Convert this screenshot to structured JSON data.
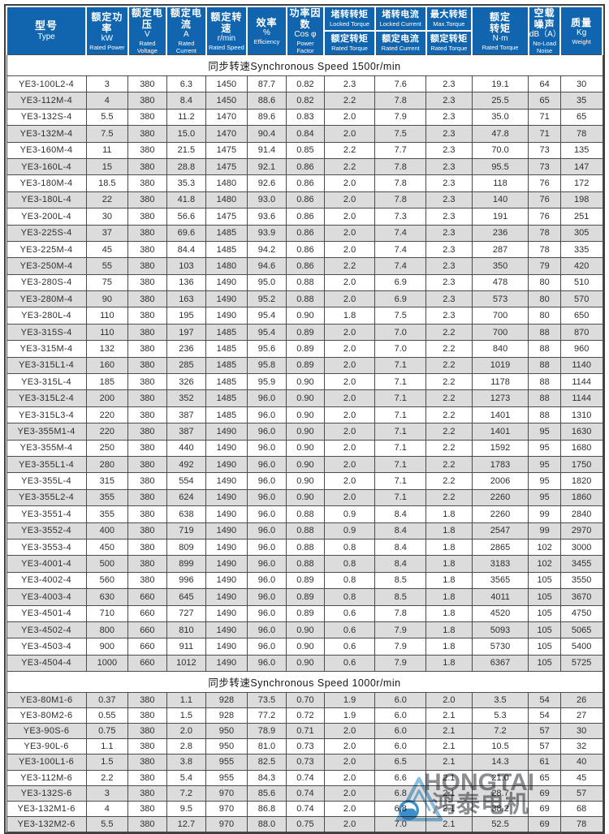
{
  "table": {
    "columns": [
      {
        "id": "type",
        "cjk": [
          "型号"
        ],
        "en": [
          "Type"
        ]
      },
      {
        "id": "rated-power",
        "cjk": [
          "额定功率"
        ],
        "unit": "kW",
        "en": [
          "Rated Power"
        ]
      },
      {
        "id": "rated-voltage",
        "cjk": [
          "额定电压"
        ],
        "unit": "V",
        "en": [
          "Rated Voltage"
        ]
      },
      {
        "id": "rated-current",
        "cjk": [
          "额定电流"
        ],
        "unit": "A",
        "en": [
          "Rated Current"
        ]
      },
      {
        "id": "rated-speed",
        "cjk": [
          "额定转速"
        ],
        "unit": "r/min",
        "en": [
          "Rated Speed"
        ]
      },
      {
        "id": "efficiency",
        "cjk": [
          "效率"
        ],
        "unit": "%",
        "en": [
          "Efficiency"
        ]
      },
      {
        "id": "power-factor",
        "cjk": [
          "功率因数"
        ],
        "unit": "Cos φ",
        "en": [
          "Power Factor"
        ]
      },
      {
        "id": "locked-torque-ratio",
        "top": {
          "cjk": "堵转转矩",
          "en": "Locked Torque"
        },
        "bottom": {
          "cjk": "额定转矩",
          "en": "Rated Torque"
        }
      },
      {
        "id": "locked-current-ratio",
        "top": {
          "cjk": "堵转电流",
          "en": "Locked Current"
        },
        "bottom": {
          "cjk": "额定电流",
          "en": "Rated Current"
        }
      },
      {
        "id": "max-torque-ratio",
        "top": {
          "cjk": "最大转矩",
          "en": "Max.Torque"
        },
        "bottom": {
          "cjk": "额定转矩",
          "en": "Rated Torque"
        }
      },
      {
        "id": "rated-torque",
        "cjk": [
          "额定",
          "转矩"
        ],
        "unit": "N·m",
        "en": [
          "Rated Torque"
        ]
      },
      {
        "id": "no-load-noise",
        "cjk": [
          "空载",
          "噪声"
        ],
        "unit": "dB（A）",
        "en": [
          "No-Load",
          "Noise"
        ]
      },
      {
        "id": "weight",
        "cjk": [
          "质量"
        ],
        "unit": "Kg",
        "en": [
          "Weight"
        ]
      }
    ],
    "sections": [
      {
        "id": "sync-speed-1500",
        "title": "同步转速Synchronous Speed  1500r/min",
        "rows": [
          [
            "YE3-100L2-4",
            "3",
            "380",
            "6.3",
            "1450",
            "87.7",
            "0.82",
            "2.3",
            "7.6",
            "2.3",
            "19.1",
            "64",
            "30"
          ],
          [
            "YE3-112M-4",
            "4",
            "380",
            "8.4",
            "1450",
            "88.6",
            "0.82",
            "2.2",
            "7.8",
            "2.3",
            "25.5",
            "65",
            "35"
          ],
          [
            "YE3-132S-4",
            "5.5",
            "380",
            "11.2",
            "1470",
            "89.6",
            "0.83",
            "2.0",
            "7.9",
            "2.3",
            "35.0",
            "71",
            "65"
          ],
          [
            "YE3-132M-4",
            "7.5",
            "380",
            "15.0",
            "1470",
            "90.4",
            "0.84",
            "2.0",
            "7.5",
            "2.3",
            "47.8",
            "71",
            "78"
          ],
          [
            "YE3-160M-4",
            "11",
            "380",
            "21.5",
            "1475",
            "91.4",
            "0.85",
            "2.2",
            "7.7",
            "2.3",
            "70.0",
            "73",
            "135"
          ],
          [
            "YE3-160L-4",
            "15",
            "380",
            "28.8",
            "1475",
            "92.1",
            "0.86",
            "2.2",
            "7.8",
            "2.3",
            "95.5",
            "73",
            "147"
          ],
          [
            "YE3-180M-4",
            "18.5",
            "380",
            "35.3",
            "1480",
            "92.6",
            "0.86",
            "2.0",
            "7.8",
            "2.3",
            "118",
            "76",
            "172"
          ],
          [
            "YE3-180L-4",
            "22",
            "380",
            "41.8",
            "1480",
            "93.0",
            "0.86",
            "2.0",
            "7.8",
            "2.3",
            "140",
            "76",
            "198"
          ],
          [
            "YE3-200L-4",
            "30",
            "380",
            "56.6",
            "1475",
            "93.6",
            "0.86",
            "2.0",
            "7.3",
            "2.3",
            "191",
            "76",
            "251"
          ],
          [
            "YE3-225S-4",
            "37",
            "380",
            "69.6",
            "1485",
            "93.9",
            "0.86",
            "2.0",
            "7.4",
            "2.3",
            "236",
            "78",
            "305"
          ],
          [
            "YE3-225M-4",
            "45",
            "380",
            "84.4",
            "1485",
            "94.2",
            "0.86",
            "2.0",
            "7.4",
            "2.3",
            "287",
            "78",
            "335"
          ],
          [
            "YE3-250M-4",
            "55",
            "380",
            "103",
            "1480",
            "94.6",
            "0.86",
            "2.2",
            "7.4",
            "2.3",
            "350",
            "79",
            "420"
          ],
          [
            "YE3-280S-4",
            "75",
            "380",
            "136",
            "1490",
            "95.0",
            "0.88",
            "2.0",
            "6.9",
            "2.3",
            "478",
            "80",
            "510"
          ],
          [
            "YE3-280M-4",
            "90",
            "380",
            "163",
            "1490",
            "95.2",
            "0.88",
            "2.0",
            "6.9",
            "2.3",
            "573",
            "80",
            "570"
          ],
          [
            "YE3-280L-4",
            "110",
            "380",
            "195",
            "1490",
            "95.4",
            "0.90",
            "1.8",
            "7.5",
            "2.3",
            "700",
            "80",
            "650"
          ],
          [
            "YE3-315S-4",
            "110",
            "380",
            "197",
            "1485",
            "95.4",
            "0.89",
            "2.0",
            "7.0",
            "2.2",
            "700",
            "88",
            "870"
          ],
          [
            "YE3-315M-4",
            "132",
            "380",
            "236",
            "1485",
            "95.6",
            "0.89",
            "2.0",
            "7.0",
            "2.2",
            "840",
            "88",
            "960"
          ],
          [
            "YE3-315L1-4",
            "160",
            "380",
            "285",
            "1485",
            "95.8",
            "0.89",
            "2.0",
            "7.1",
            "2.2",
            "1019",
            "88",
            "1140"
          ],
          [
            "YE3-315L-4",
            "185",
            "380",
            "326",
            "1485",
            "95.9",
            "0.90",
            "2.0",
            "7.1",
            "2.2",
            "1178",
            "88",
            "1144"
          ],
          [
            "YE3-315L2-4",
            "200",
            "380",
            "352",
            "1485",
            "96.0",
            "0.90",
            "2.0",
            "7.1",
            "2.2",
            "1273",
            "88",
            "1144"
          ],
          [
            "YE3-315L3-4",
            "220",
            "380",
            "387",
            "1485",
            "96.0",
            "0.90",
            "2.0",
            "7.1",
            "2.2",
            "1401",
            "88",
            "1310"
          ],
          [
            "YE3-355M1-4",
            "220",
            "380",
            "387",
            "1490",
            "96.0",
            "0.90",
            "2.0",
            "7.1",
            "2.2",
            "1401",
            "95",
            "1630"
          ],
          [
            "YE3-355M-4",
            "250",
            "380",
            "440",
            "1490",
            "96.0",
            "0.90",
            "2.0",
            "7.1",
            "2.2",
            "1592",
            "95",
            "1680"
          ],
          [
            "YE3-355L1-4",
            "280",
            "380",
            "492",
            "1490",
            "96.0",
            "0.90",
            "2.0",
            "7.1",
            "2.2",
            "1783",
            "95",
            "1750"
          ],
          [
            "YE3-355L-4",
            "315",
            "380",
            "554",
            "1490",
            "96.0",
            "0.90",
            "2.0",
            "7.1",
            "2.2",
            "2006",
            "95",
            "1820"
          ],
          [
            "YE3-355L2-4",
            "355",
            "380",
            "624",
            "1490",
            "96.0",
            "0.90",
            "2.0",
            "7.1",
            "2.2",
            "2260",
            "95",
            "1860"
          ],
          [
            "YE3-3551-4",
            "355",
            "380",
            "638",
            "1490",
            "96.0",
            "0.88",
            "0.9",
            "8.4",
            "1.8",
            "2260",
            "99",
            "2840"
          ],
          [
            "YE3-3552-4",
            "400",
            "380",
            "719",
            "1490",
            "96.0",
            "0.88",
            "0.9",
            "8.4",
            "1.8",
            "2547",
            "99",
            "2970"
          ],
          [
            "YE3-3553-4",
            "450",
            "380",
            "809",
            "1490",
            "96.0",
            "0.88",
            "0.8",
            "8.4",
            "1.8",
            "2865",
            "102",
            "3000"
          ],
          [
            "YE3-4001-4",
            "500",
            "380",
            "899",
            "1490",
            "96.0",
            "0.88",
            "0.8",
            "8.4",
            "1.8",
            "3183",
            "102",
            "3455"
          ],
          [
            "YE3-4002-4",
            "560",
            "380",
            "996",
            "1490",
            "96.0",
            "0.89",
            "0.8",
            "8.5",
            "1.8",
            "3565",
            "105",
            "3550"
          ],
          [
            "YE3-4003-4",
            "630",
            "660",
            "645",
            "1490",
            "96.0",
            "0.89",
            "0.8",
            "8.5",
            "1.8",
            "4011",
            "105",
            "3670"
          ],
          [
            "YE3-4501-4",
            "710",
            "660",
            "727",
            "1490",
            "96.0",
            "0.89",
            "0.6",
            "7.8",
            "1.8",
            "4520",
            "105",
            "4750"
          ],
          [
            "YE3-4502-4",
            "800",
            "660",
            "810",
            "1490",
            "96.0",
            "0.90",
            "0.6",
            "7.9",
            "1.8",
            "5093",
            "105",
            "5065"
          ],
          [
            "YE3-4503-4",
            "900",
            "660",
            "911",
            "1490",
            "96.0",
            "0.90",
            "0.6",
            "7.9",
            "1.8",
            "5730",
            "105",
            "5400"
          ],
          [
            "YE3-4504-4",
            "1000",
            "660",
            "1012",
            "1490",
            "96.0",
            "0.90",
            "0.6",
            "7.9",
            "1.8",
            "6367",
            "105",
            "5725"
          ]
        ]
      },
      {
        "id": "sync-speed-1000",
        "title": "同步转速Synchronous Speed  1000r/min",
        "rows": [
          [
            "YE3-80M1-6",
            "0.37",
            "380",
            "1.1",
            "928",
            "73.5",
            "0.70",
            "1.9",
            "6.0",
            "2.0",
            "3.5",
            "54",
            "26"
          ],
          [
            "YE3-80M2-6",
            "0.55",
            "380",
            "1.5",
            "928",
            "77.2",
            "0.72",
            "1.9",
            "6.0",
            "2.1",
            "5.3",
            "54",
            "27"
          ],
          [
            "YE3-90S-6",
            "0.75",
            "380",
            "2.0",
            "950",
            "78.9",
            "0.71",
            "2.0",
            "6.0",
            "2.1",
            "7.2",
            "57",
            "30"
          ],
          [
            "YE3-90L-6",
            "1.1",
            "380",
            "2.8",
            "950",
            "81.0",
            "0.73",
            "2.0",
            "6.0",
            "2.1",
            "10.5",
            "57",
            "32"
          ],
          [
            "YE3-100L1-6",
            "1.5",
            "380",
            "3.8",
            "955",
            "82.5",
            "0.73",
            "2.0",
            "6.5",
            "2.1",
            "14.3",
            "61",
            "40"
          ],
          [
            "YE3-112M-6",
            "2.2",
            "380",
            "5.4",
            "955",
            "84.3",
            "0.74",
            "2.0",
            "6.6",
            "2.1",
            "21.0",
            "65",
            "45"
          ],
          [
            "YE3-132S-6",
            "3",
            "380",
            "7.2",
            "970",
            "85.6",
            "0.74",
            "2.0",
            "6.8",
            "2.1",
            "28.7",
            "69",
            "57"
          ],
          [
            "YE3-132M1-6",
            "4",
            "380",
            "9.5",
            "970",
            "86.8",
            "0.74",
            "2.0",
            "6.8",
            "2.1",
            "38.2",
            "69",
            "68"
          ],
          [
            "YE3-132M2-6",
            "5.5",
            "380",
            "12.7",
            "970",
            "88.0",
            "0.75",
            "2.0",
            "7.0",
            "2.1",
            "52.5",
            "69",
            "78"
          ]
        ]
      }
    ]
  },
  "watermark": {
    "brand": "HONGTAI",
    "brand_cjk": "鸿泰电机",
    "logo_icon": "mountain-triangle-swirl-logo",
    "colors": {
      "triangle": "#7fb9e0",
      "circle": "#2e86c5",
      "text": "#83878a"
    }
  },
  "colors": {
    "header_bg": "#1164ae",
    "header_text": "#ffffff",
    "row_alt": "#dcdcdc",
    "grid_border": "#4c4c4c",
    "body_text": "#2e2e2e"
  }
}
